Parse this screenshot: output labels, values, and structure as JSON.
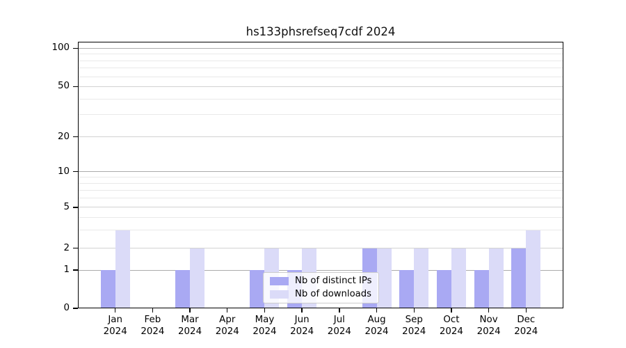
{
  "title": "hs133phsrefseq7cdf 2024",
  "chart_data": {
    "type": "bar",
    "title": "hs133phsrefseq7cdf 2024",
    "categories": [
      "Jan",
      "Feb",
      "Mar",
      "Apr",
      "May",
      "Jun",
      "Jul",
      "Aug",
      "Sep",
      "Oct",
      "Nov",
      "Dec"
    ],
    "year_label": "2024",
    "series": [
      {
        "name": "Nb of distinct IPs",
        "color": "#a9a9f3",
        "values": [
          1,
          0,
          1,
          0,
          1,
          1,
          0,
          2,
          1,
          1,
          1,
          2
        ]
      },
      {
        "name": "Nb of downloads",
        "color": "#dbdbf8",
        "values": [
          3,
          0,
          2,
          0,
          2,
          2,
          0,
          2,
          2,
          2,
          2,
          3
        ]
      }
    ],
    "yaxis": {
      "scale": "log-like-symlog",
      "ticks": [
        0,
        1,
        2,
        5,
        10,
        20,
        50,
        100
      ],
      "ylim": [
        0,
        115
      ],
      "scale_anchors": [
        [
          0,
          1.0
        ],
        [
          1,
          0.8564
        ],
        [
          2,
          0.7742
        ],
        [
          5,
          0.6214
        ],
        [
          10,
          0.487
        ],
        [
          20,
          0.3564
        ],
        [
          50,
          0.1684
        ],
        [
          100,
          0.0248
        ]
      ],
      "major_gridlines": [
        1,
        10,
        100
      ],
      "labeled_minor_gridlines": [
        2,
        5,
        20,
        50
      ],
      "minor_gridlines": [
        3,
        4,
        6,
        7,
        8,
        9,
        30,
        40,
        60,
        70,
        80,
        90
      ]
    },
    "xaxis": {
      "tick_count": 12
    },
    "grid": true,
    "legend_position": "lower center",
    "colors": {
      "grid_major": "#ababab",
      "grid_labeled_minor": "#d2d2d2",
      "grid_minor": "#e9e9e9",
      "axis": "#000000",
      "background": "#ffffff"
    }
  },
  "legend": {
    "items": [
      {
        "label": "Nb of distinct IPs"
      },
      {
        "label": "Nb of downloads"
      }
    ]
  }
}
